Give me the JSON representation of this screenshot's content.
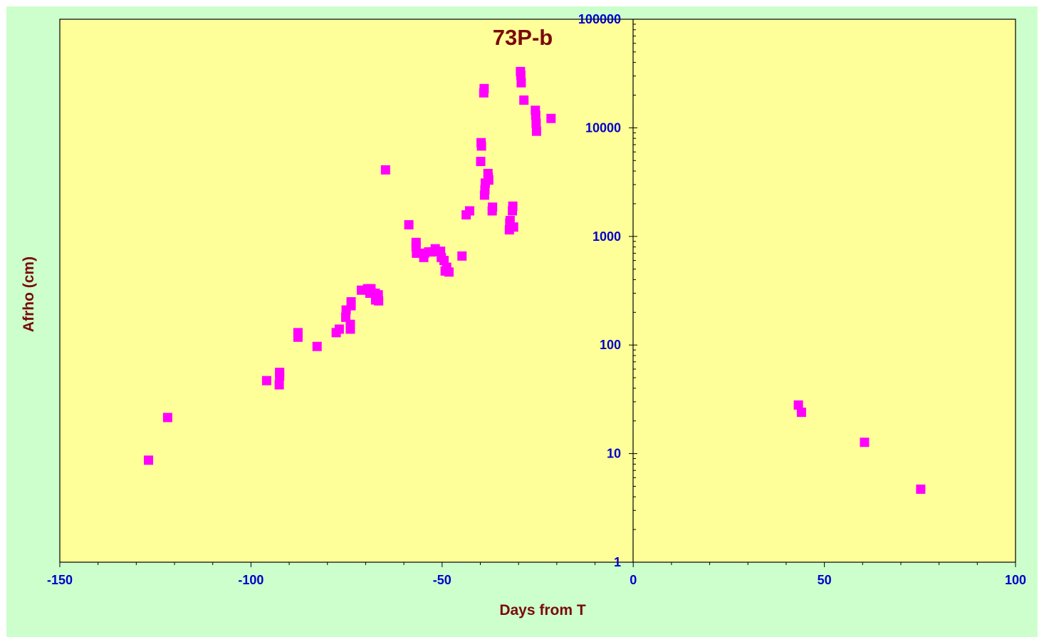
{
  "chart_data": {
    "type": "scatter",
    "title": "73P-b",
    "xlabel": "Days from T",
    "ylabel": "Afrho (cm)",
    "xlim": [
      -150,
      100
    ],
    "ylim": [
      1,
      100000
    ],
    "yscale": "log",
    "x_ticks": [
      "-150",
      "-100",
      "-50",
      "0",
      "50",
      "100"
    ],
    "y_ticks": [
      "1",
      "10",
      "100",
      "1000",
      "10000",
      "100000"
    ],
    "grid": false,
    "legend": "none",
    "colors": {
      "background": "#ccffcc",
      "plot_area": "#ffff99",
      "marker": "#ff00ff",
      "title": "#7a0a0a",
      "ticks": "#0000cc"
    },
    "series": [
      {
        "points": [
          [
            -126.8,
            8.7
          ],
          [
            -121.8,
            21.5
          ],
          [
            -95.9,
            47
          ],
          [
            -92.6,
            43
          ],
          [
            -92.5,
            52
          ],
          [
            -92.5,
            56
          ],
          [
            -87.7,
            118
          ],
          [
            -87.7,
            130
          ],
          [
            -82.7,
            97
          ],
          [
            -77.7,
            130
          ],
          [
            -76.9,
            140
          ],
          [
            -75.2,
            180
          ],
          [
            -75.1,
            210
          ],
          [
            -74,
            140
          ],
          [
            -74,
            155
          ],
          [
            -73.8,
            230
          ],
          [
            -73.8,
            250
          ],
          [
            -71.1,
            320
          ],
          [
            -69.5,
            330
          ],
          [
            -68.9,
            300
          ],
          [
            -68.6,
            330
          ],
          [
            -67.5,
            300
          ],
          [
            -67.4,
            260
          ],
          [
            -66.7,
            290
          ],
          [
            -66.6,
            255
          ],
          [
            -64.8,
            4100
          ],
          [
            -58.7,
            1280
          ],
          [
            -56.8,
            880
          ],
          [
            -56.8,
            800
          ],
          [
            -56.7,
            700
          ],
          [
            -54.8,
            640
          ],
          [
            -54.6,
            700
          ],
          [
            -53.5,
            720
          ],
          [
            -52.7,
            720
          ],
          [
            -51.8,
            770
          ],
          [
            -50.4,
            730
          ],
          [
            -50.2,
            640
          ],
          [
            -49.5,
            600
          ],
          [
            -49.2,
            480
          ],
          [
            -48.8,
            520
          ],
          [
            -48.2,
            470
          ],
          [
            -44.8,
            660
          ],
          [
            -43.7,
            1580
          ],
          [
            -42.8,
            1720
          ],
          [
            -39.9,
            4900
          ],
          [
            -39.8,
            7300
          ],
          [
            -39.7,
            6800
          ],
          [
            -39.1,
            21000
          ],
          [
            -39,
            23000
          ],
          [
            -38.9,
            2400
          ],
          [
            -38.8,
            2700
          ],
          [
            -38.7,
            3100
          ],
          [
            -38,
            3800
          ],
          [
            -37.9,
            3500
          ],
          [
            -37.8,
            3300
          ],
          [
            -36.9,
            1720
          ],
          [
            -36.8,
            1860
          ],
          [
            -32.4,
            1150
          ],
          [
            -32.3,
            1330
          ],
          [
            -32.2,
            1400
          ],
          [
            -31.6,
            1720
          ],
          [
            -31.5,
            1900
          ],
          [
            -31.3,
            1220
          ],
          [
            -29.5,
            33000
          ],
          [
            -29.4,
            30500
          ],
          [
            -29.3,
            26000
          ],
          [
            -28.6,
            18000
          ],
          [
            -25.6,
            14500
          ],
          [
            -25.5,
            13000
          ],
          [
            -25.4,
            11000
          ],
          [
            -25.3,
            9300
          ],
          [
            -21.5,
            12200
          ],
          [
            43.2,
            28
          ],
          [
            44,
            24
          ],
          [
            60.5,
            12.7
          ],
          [
            75.2,
            4.7
          ]
        ]
      }
    ]
  }
}
